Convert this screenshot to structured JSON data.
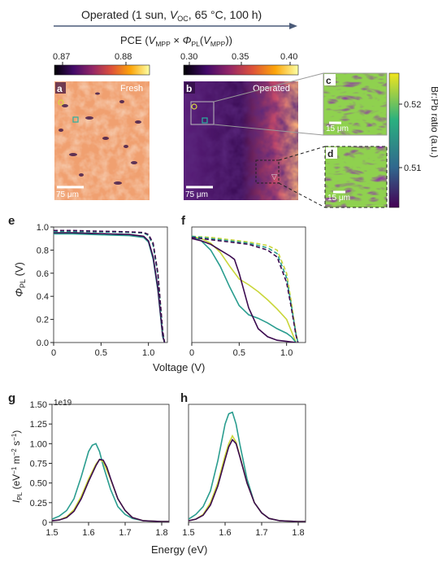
{
  "header": {
    "operated_prefix": "Operated (1 sun, ",
    "voc_v": "V",
    "voc_sub": "OC",
    "operated_suffix": ", 65 °C, 100 h)",
    "pce_prefix": "PCE (",
    "vmpp_v": "V",
    "vmpp_sub": "MPP",
    "times": " × ",
    "phi": "Φ",
    "phi_sub": "PL",
    "paren_open": "(",
    "vmpp2_v": "V",
    "vmpp2_sub": "MPP",
    "pce_suffix": "))"
  },
  "colorbar_a": {
    "ticks": [
      "0.87",
      "0.88"
    ]
  },
  "colorbar_b": {
    "ticks": [
      "0.30",
      "0.35",
      "0.40"
    ]
  },
  "colorbar_br": {
    "label": "Br:Pb ratio (a.u.)",
    "ticks": [
      "0.52",
      "0.51"
    ],
    "colors": [
      "#f1e51d",
      "#2ab07f",
      "#31688e",
      "#440154"
    ]
  },
  "panels": {
    "a": {
      "letter": "a",
      "tag": "Fresh",
      "scale": "75 μm"
    },
    "b": {
      "letter": "b",
      "tag": "Operated",
      "scale": "75 μm"
    },
    "c": {
      "letter": "c",
      "scale": "15 μm"
    },
    "d": {
      "letter": "d",
      "scale": "15 μm"
    },
    "e": {
      "letter": "e"
    },
    "f": {
      "letter": "f"
    },
    "g": {
      "letter": "g",
      "exponent": "1e19"
    },
    "h": {
      "letter": "h"
    }
  },
  "jv_axes": {
    "ylabel_sym": "Φ",
    "ylabel_sub": "PL",
    "ylabel_unit": " (V)",
    "xlabel": "Voltage (V)",
    "yticks": [
      "0.0",
      "0.2",
      "0.4",
      "0.6",
      "0.8",
      "1.0"
    ],
    "xticks_e": [
      "0",
      "0.5",
      "1.0"
    ],
    "xticks_f": [
      "0",
      "0.5",
      "1.0"
    ]
  },
  "pl_axes": {
    "ylabel_sym": "I",
    "ylabel_sub": "PL",
    "ylabel_unit_a": " (eV",
    "ylabel_sup1": "−1",
    "ylabel_unit_b": " m",
    "ylabel_sup2": "−2",
    "ylabel_unit_c": " s",
    "ylabel_sup3": "−1",
    "ylabel_unit_d": ")",
    "xlabel": "Energy (eV)",
    "yticks": [
      "0",
      "0.25",
      "0.50",
      "0.75",
      "1.00",
      "1.25",
      "1.50"
    ],
    "xticks": [
      "1.5",
      "1.6",
      "1.7",
      "1.8"
    ]
  },
  "chart_data": [
    {
      "panel": "e",
      "type": "line",
      "xlim": [
        0,
        1.2
      ],
      "ylim": [
        0,
        1.0
      ],
      "series": [
        {
          "color": "#2a9d8f",
          "style": "solid",
          "x": [
            0,
            0.2,
            0.4,
            0.6,
            0.8,
            0.95,
            1.0,
            1.05,
            1.1,
            1.15,
            1.17
          ],
          "y": [
            0.94,
            0.94,
            0.935,
            0.93,
            0.925,
            0.91,
            0.87,
            0.72,
            0.45,
            0.05,
            0
          ]
        },
        {
          "color": "#3b0a4f",
          "style": "solid",
          "x": [
            0,
            0.2,
            0.4,
            0.6,
            0.8,
            0.95,
            1.0,
            1.05,
            1.1,
            1.15,
            1.17
          ],
          "y": [
            0.95,
            0.95,
            0.945,
            0.94,
            0.935,
            0.92,
            0.88,
            0.74,
            0.47,
            0.06,
            0
          ]
        },
        {
          "color": "#c9d639",
          "style": "dashed",
          "x": [
            0,
            0.2,
            0.4,
            0.6,
            0.8,
            0.95,
            1.0,
            1.05,
            1.1,
            1.15,
            1.17
          ],
          "y": [
            0.965,
            0.965,
            0.96,
            0.958,
            0.955,
            0.95,
            0.93,
            0.85,
            0.6,
            0.1,
            0
          ]
        },
        {
          "color": "#2a9d8f",
          "style": "dashed",
          "x": [
            0,
            0.2,
            0.4,
            0.6,
            0.8,
            0.95,
            1.0,
            1.05,
            1.1,
            1.15,
            1.17
          ],
          "y": [
            0.96,
            0.96,
            0.958,
            0.956,
            0.953,
            0.948,
            0.925,
            0.84,
            0.58,
            0.09,
            0
          ]
        },
        {
          "color": "#3b0a4f",
          "style": "dashed",
          "x": [
            0,
            0.2,
            0.4,
            0.6,
            0.8,
            0.95,
            1.0,
            1.05,
            1.1,
            1.15,
            1.17
          ],
          "y": [
            0.97,
            0.97,
            0.965,
            0.962,
            0.958,
            0.952,
            0.935,
            0.86,
            0.6,
            0.1,
            0
          ]
        }
      ]
    },
    {
      "panel": "f",
      "type": "line",
      "xlim": [
        0,
        1.2
      ],
      "ylim": [
        0,
        1.0
      ],
      "series": [
        {
          "color": "#c9d639",
          "style": "solid",
          "x": [
            0,
            0.1,
            0.2,
            0.3,
            0.4,
            0.5,
            0.6,
            0.7,
            0.8,
            0.9,
            1.0,
            1.05,
            1.1
          ],
          "y": [
            0.92,
            0.9,
            0.86,
            0.78,
            0.66,
            0.55,
            0.5,
            0.44,
            0.37,
            0.29,
            0.2,
            0.1,
            0
          ]
        },
        {
          "color": "#2a9d8f",
          "style": "solid",
          "x": [
            0,
            0.1,
            0.2,
            0.3,
            0.4,
            0.5,
            0.6,
            0.7,
            0.8,
            0.9,
            1.0,
            1.05,
            1.1
          ],
          "y": [
            0.92,
            0.88,
            0.8,
            0.66,
            0.48,
            0.32,
            0.24,
            0.21,
            0.17,
            0.12,
            0.08,
            0.05,
            0
          ]
        },
        {
          "color": "#3b0a4f",
          "style": "solid",
          "x": [
            0,
            0.1,
            0.2,
            0.3,
            0.4,
            0.45,
            0.5,
            0.6,
            0.7,
            0.8,
            0.9,
            1.0,
            1.1
          ],
          "y": [
            0.9,
            0.88,
            0.85,
            0.8,
            0.75,
            0.72,
            0.6,
            0.3,
            0.12,
            0.05,
            0.02,
            0.01,
            0
          ]
        },
        {
          "color": "#c9d639",
          "style": "dashed",
          "x": [
            0,
            0.2,
            0.4,
            0.6,
            0.8,
            0.9,
            1.0,
            1.05,
            1.1,
            1.12
          ],
          "y": [
            0.92,
            0.91,
            0.89,
            0.87,
            0.84,
            0.8,
            0.6,
            0.35,
            0.08,
            0
          ]
        },
        {
          "color": "#2a9d8f",
          "style": "dashed",
          "x": [
            0,
            0.2,
            0.4,
            0.6,
            0.8,
            0.9,
            1.0,
            1.05,
            1.1,
            1.12
          ],
          "y": [
            0.92,
            0.9,
            0.88,
            0.86,
            0.82,
            0.77,
            0.56,
            0.32,
            0.07,
            0
          ]
        },
        {
          "color": "#3b0a4f",
          "style": "dashed",
          "x": [
            0,
            0.2,
            0.4,
            0.6,
            0.8,
            0.9,
            1.0,
            1.05,
            1.1,
            1.12
          ],
          "y": [
            0.91,
            0.89,
            0.87,
            0.85,
            0.8,
            0.74,
            0.52,
            0.3,
            0.06,
            0
          ]
        }
      ]
    },
    {
      "panel": "g",
      "type": "line",
      "xlim": [
        1.5,
        1.82
      ],
      "ylim": [
        0,
        1.5
      ],
      "series": [
        {
          "color": "#2a9d8f",
          "x": [
            1.5,
            1.52,
            1.54,
            1.56,
            1.58,
            1.6,
            1.61,
            1.62,
            1.63,
            1.64,
            1.66,
            1.68,
            1.7,
            1.72,
            1.75,
            1.8,
            1.82
          ],
          "y": [
            0.04,
            0.08,
            0.15,
            0.3,
            0.58,
            0.9,
            0.98,
            1.0,
            0.9,
            0.72,
            0.42,
            0.2,
            0.1,
            0.05,
            0.02,
            0.01,
            0.01
          ]
        },
        {
          "color": "#c9d639",
          "x": [
            1.5,
            1.52,
            1.54,
            1.56,
            1.58,
            1.6,
            1.62,
            1.63,
            1.64,
            1.65,
            1.66,
            1.68,
            1.7,
            1.72,
            1.75,
            1.8,
            1.82
          ],
          "y": [
            0.02,
            0.03,
            0.07,
            0.16,
            0.33,
            0.55,
            0.74,
            0.8,
            0.77,
            0.66,
            0.55,
            0.3,
            0.15,
            0.06,
            0.02,
            0.01,
            0.01
          ]
        },
        {
          "color": "#3b0a4f",
          "x": [
            1.5,
            1.52,
            1.54,
            1.56,
            1.58,
            1.6,
            1.62,
            1.63,
            1.64,
            1.65,
            1.66,
            1.68,
            1.7,
            1.72,
            1.75,
            1.8,
            1.82
          ],
          "y": [
            0.02,
            0.03,
            0.06,
            0.14,
            0.3,
            0.52,
            0.72,
            0.8,
            0.79,
            0.7,
            0.56,
            0.3,
            0.15,
            0.06,
            0.02,
            0.01,
            0.01
          ]
        }
      ]
    },
    {
      "panel": "h",
      "type": "line",
      "xlim": [
        1.5,
        1.82
      ],
      "ylim": [
        0,
        1.5
      ],
      "series": [
        {
          "color": "#2a9d8f",
          "x": [
            1.5,
            1.52,
            1.54,
            1.56,
            1.58,
            1.6,
            1.61,
            1.62,
            1.63,
            1.64,
            1.66,
            1.68,
            1.7,
            1.72,
            1.75,
            1.8,
            1.82
          ],
          "y": [
            0.04,
            0.1,
            0.2,
            0.4,
            0.78,
            1.25,
            1.38,
            1.4,
            1.25,
            1.0,
            0.55,
            0.25,
            0.12,
            0.05,
            0.02,
            0.01,
            0.01
          ]
        },
        {
          "color": "#c9d639",
          "x": [
            1.5,
            1.52,
            1.54,
            1.56,
            1.58,
            1.6,
            1.61,
            1.62,
            1.63,
            1.64,
            1.66,
            1.68,
            1.7,
            1.72,
            1.75,
            1.8,
            1.82
          ],
          "y": [
            0.02,
            0.04,
            0.1,
            0.25,
            0.5,
            0.85,
            1.0,
            1.1,
            1.02,
            0.85,
            0.5,
            0.25,
            0.12,
            0.05,
            0.02,
            0.01,
            0.01
          ]
        },
        {
          "color": "#3b0a4f",
          "x": [
            1.5,
            1.52,
            1.54,
            1.56,
            1.58,
            1.6,
            1.61,
            1.62,
            1.63,
            1.64,
            1.66,
            1.68,
            1.7,
            1.72,
            1.75,
            1.8,
            1.82
          ],
          "y": [
            0.02,
            0.04,
            0.09,
            0.22,
            0.46,
            0.8,
            0.96,
            1.05,
            1.0,
            0.84,
            0.5,
            0.25,
            0.12,
            0.05,
            0.02,
            0.01,
            0.01
          ]
        }
      ]
    }
  ]
}
